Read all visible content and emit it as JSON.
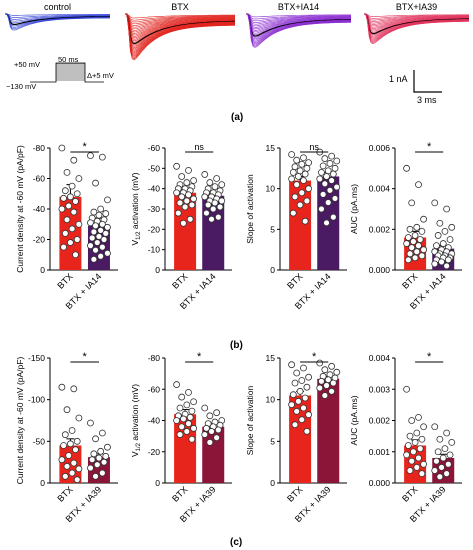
{
  "panel_a": {
    "traces": [
      {
        "label": "control",
        "color": "#2f3fd6",
        "n": 10,
        "min": 0.3
      },
      {
        "label": "BTX",
        "color": "#e0201a",
        "n": 30,
        "min": 0.85
      },
      {
        "label": "BTX+IA14",
        "color": "#8a2ad0",
        "n": 22,
        "min": 0.62
      },
      {
        "label": "BTX+IA39",
        "color": "#e0305a",
        "n": 22,
        "min": 0.55
      }
    ],
    "protocol": {
      "top": "+50 mV",
      "duration": "50 ms",
      "step": "Δ+5 mV",
      "holding": "−130 mV"
    },
    "scalebar": {
      "y": "1 nA",
      "x": "3 ms"
    },
    "letter": "(a)"
  },
  "chart_data": [
    {
      "type": "bar",
      "panel": "b",
      "categories": [
        "BTX",
        "BTX + IA14"
      ],
      "values": [
        -48,
        -29
      ],
      "errors": [
        8,
        5
      ],
      "colors": [
        "#e8251c",
        "#4a1a63"
      ],
      "ylabel": "Current density at -60 mV (pA/pF)",
      "ylim": [
        0,
        -80
      ],
      "ticks": [
        0,
        -20,
        -40,
        -60,
        -80
      ],
      "tick_labels": [
        "0",
        "-20",
        "-40",
        "-60",
        "-80"
      ],
      "sig": "*",
      "points": [
        [
          -80,
          -72,
          -64,
          -60,
          -55,
          -52,
          -50,
          -48,
          -47,
          -45,
          -42,
          -40,
          -38,
          -33,
          -30,
          -27,
          -24,
          -20,
          -18,
          -15,
          -10
        ],
        [
          -75,
          -74,
          -57,
          -46,
          -40,
          -38,
          -37,
          -36,
          -34,
          -33,
          -32,
          -31,
          -30,
          -29,
          -28,
          -26,
          -25,
          -24,
          -22,
          -21,
          -20,
          -18,
          -16,
          -15,
          -13,
          -11,
          -9,
          -7
        ]
      ]
    },
    {
      "type": "bar",
      "panel": "b",
      "categories": [
        "BTX",
        "BTX + IA14"
      ],
      "values": [
        -38,
        -36.5
      ],
      "errors": [
        1.6,
        1.3
      ],
      "colors": [
        "#e8251c",
        "#4a1a63"
      ],
      "ylabel": "V1/2 activation (mV)",
      "ylim": [
        0,
        -60
      ],
      "ticks": [
        0,
        -10,
        -20,
        -30,
        -40,
        -50,
        -60
      ],
      "tick_labels": [
        "0",
        "-10",
        "-20",
        "-30",
        "-40",
        "-50",
        "-60"
      ],
      "sig": "ns",
      "points": [
        [
          -51,
          -49,
          -46,
          -44,
          -43,
          -42,
          -41,
          -40,
          -40,
          -39,
          -38,
          -38,
          -37,
          -36,
          -35,
          -34,
          -33,
          -32,
          -31,
          -28,
          -25,
          -23
        ],
        [
          -47,
          -45,
          -43,
          -42,
          -41,
          -40,
          -39,
          -38,
          -38,
          -37,
          -36,
          -36,
          -35,
          -34,
          -34,
          -33,
          -32,
          -31,
          -30,
          -28,
          -26,
          -25
        ]
      ]
    },
    {
      "type": "bar",
      "panel": "b",
      "categories": [
        "BTX",
        "BTX + IA14"
      ],
      "values": [
        11,
        11.5
      ],
      "errors": [
        0.5,
        0.5
      ],
      "colors": [
        "#e8251c",
        "#4a1a63"
      ],
      "ylabel": "Slope of activation",
      "ylim": [
        0,
        15
      ],
      "ticks": [
        0,
        5,
        10,
        15
      ],
      "tick_labels": [
        "0",
        "5",
        "10",
        "15"
      ],
      "sig": "ns",
      "points": [
        [
          14.2,
          13.8,
          13.5,
          13.2,
          13,
          12.7,
          12.5,
          12.2,
          12,
          11.8,
          11.5,
          11.2,
          11,
          10.5,
          10,
          9.5,
          9,
          8.5,
          8,
          7,
          6
        ],
        [
          14.5,
          14,
          13.7,
          13.4,
          13.1,
          12.8,
          12.5,
          12.2,
          12,
          11.8,
          11.5,
          11.2,
          11,
          10.6,
          10.2,
          9.8,
          9.3,
          8.8,
          8.3,
          7.5,
          6.5,
          5.8
        ]
      ]
    },
    {
      "type": "bar",
      "panel": "b",
      "categories": [
        "BTX",
        "BTX + IA14"
      ],
      "values": [
        0.0016,
        0.00105
      ],
      "errors": [
        0.0003,
        0.00015
      ],
      "colors": [
        "#e8251c",
        "#4a1a63"
      ],
      "ylabel": "AUC (pA.ms)",
      "ylim": [
        0,
        0.006
      ],
      "ticks": [
        0,
        0.002,
        0.004,
        0.006
      ],
      "tick_labels": [
        "0.000",
        "0.002",
        "0.004",
        "0.006"
      ],
      "sig": "*",
      "points": [
        [
          0.005,
          0.0042,
          0.0033,
          0.0025,
          0.0021,
          0.002,
          0.0019,
          0.0017,
          0.0016,
          0.0015,
          0.0014,
          0.0013,
          0.0012,
          0.0011,
          0.001,
          0.0009,
          0.0008,
          0.0007,
          0.0006,
          0.0005
        ],
        [
          0.0033,
          0.003,
          0.0023,
          0.0021,
          0.0019,
          0.0017,
          0.0015,
          0.0013,
          0.0012,
          0.0011,
          0.001,
          0.0009,
          0.0009,
          0.0008,
          0.0008,
          0.0007,
          0.0007,
          0.0006,
          0.0006,
          0.0005,
          0.0005,
          0.0004,
          0.0003,
          0.0002
        ]
      ]
    },
    {
      "type": "bar",
      "panel": "c",
      "categories": [
        "BTX",
        "BTX + IA39"
      ],
      "values": [
        -45,
        -31
      ],
      "errors": [
        8,
        4
      ],
      "colors": [
        "#e8251c",
        "#8a1538"
      ],
      "ylabel": "Current density at -60 mV (pA/pF)",
      "ylim": [
        0,
        -150
      ],
      "ticks": [
        0,
        -50,
        -100,
        -150
      ],
      "tick_labels": [
        "0",
        "-50",
        "-100",
        "-150"
      ],
      "sig": "*",
      "points": [
        [
          -115,
          -113,
          -88,
          -78,
          -63,
          -58,
          -50,
          -47,
          -45,
          -40,
          -33,
          -28,
          -24,
          -20,
          -17,
          -12,
          -8,
          -4
        ],
        [
          -72,
          -60,
          -53,
          -43,
          -38,
          -35,
          -32,
          -30,
          -28,
          -25,
          -22,
          -18,
          -12,
          -8
        ]
      ]
    },
    {
      "type": "bar",
      "panel": "c",
      "categories": [
        "BTX",
        "BTX + IA39"
      ],
      "values": [
        -44,
        -36
      ],
      "errors": [
        3,
        2
      ],
      "colors": [
        "#e8251c",
        "#8a1538"
      ],
      "ylabel": "V1/2 activation (mV)",
      "ylim": [
        0,
        -80
      ],
      "ticks": [
        0,
        -20,
        -40,
        -60,
        -80
      ],
      "tick_labels": [
        "0",
        "-20",
        "-40",
        "-60",
        "-80"
      ],
      "sig": "*",
      "points": [
        [
          -63,
          -58,
          -55,
          -52,
          -50,
          -48,
          -46,
          -44,
          -43,
          -42,
          -41,
          -40,
          -38,
          -36,
          -35,
          -33,
          -31,
          -28
        ],
        [
          -48,
          -45,
          -43,
          -40,
          -39,
          -38,
          -37,
          -36,
          -35,
          -34,
          -33,
          -31,
          -29,
          -26
        ]
      ]
    },
    {
      "type": "bar",
      "panel": "c",
      "categories": [
        "BTX",
        "BTX + IA39"
      ],
      "values": [
        10.5,
        12.5
      ],
      "errors": [
        0.5,
        0.3
      ],
      "colors": [
        "#e8251c",
        "#8a1538"
      ],
      "ylabel": "Slope of activation",
      "ylim": [
        0,
        15
      ],
      "ticks": [
        0,
        5,
        10,
        15
      ],
      "tick_labels": [
        "0",
        "5",
        "10",
        "15"
      ],
      "sig": "*",
      "points": [
        [
          14.2,
          13.8,
          13.2,
          12.7,
          12.3,
          12,
          11.5,
          11,
          10.6,
          10.2,
          9.8,
          9.4,
          9,
          8.6,
          8.2,
          7.6,
          7,
          6.2
        ],
        [
          14.4,
          14,
          13.6,
          13.3,
          13,
          12.8,
          12.6,
          12.4,
          12.2,
          12,
          11.7,
          11.4,
          11,
          10.5
        ]
      ]
    },
    {
      "type": "bar",
      "panel": "c",
      "categories": [
        "BTX",
        "BTX + IA39"
      ],
      "values": [
        0.0012,
        0.0008
      ],
      "errors": [
        0.00018,
        0.00012
      ],
      "colors": [
        "#e8251c",
        "#8a1538"
      ],
      "ylabel": "AUC (pA.ms)",
      "ylim": [
        0,
        0.004
      ],
      "ticks": [
        0,
        0.001,
        0.002,
        0.003,
        0.004
      ],
      "tick_labels": [
        "0.000",
        "0.001",
        "0.002",
        "0.003",
        "0.004"
      ],
      "sig": "*",
      "points": [
        [
          0.003,
          0.0021,
          0.002,
          0.0018,
          0.0016,
          0.0015,
          0.0014,
          0.0013,
          0.0012,
          0.0011,
          0.001,
          0.0009,
          0.0008,
          0.0007,
          0.0006,
          0.0005,
          0.0004,
          0.0003
        ],
        [
          0.0018,
          0.0016,
          0.0014,
          0.0013,
          0.0011,
          0.001,
          0.0009,
          0.0008,
          0.0007,
          0.0006,
          0.0005,
          0.0004,
          0.0003,
          0.0002
        ]
      ]
    }
  ],
  "panel_letters": {
    "b": "(b)",
    "c": "(c)"
  }
}
